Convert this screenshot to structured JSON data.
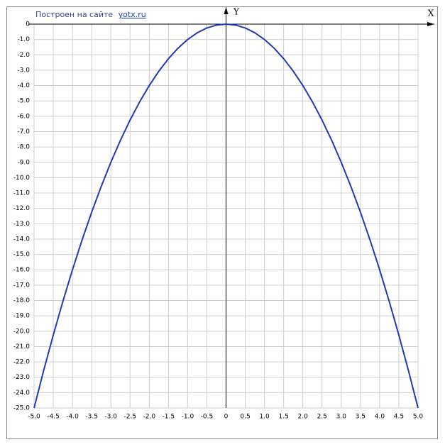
{
  "chart_data": {
    "type": "line",
    "credit": "Построен на сайте",
    "credit_link": "yotx.ru",
    "xlabel": "X",
    "ylabel": "Y",
    "x": [
      -5,
      -4.75,
      -4.5,
      -4.25,
      -4,
      -3.75,
      -3.5,
      -3.25,
      -3,
      -2.75,
      -2.5,
      -2.25,
      -2,
      -1.75,
      -1.5,
      -1.25,
      -1,
      -0.75,
      -0.5,
      -0.25,
      0,
      0.25,
      0.5,
      0.75,
      1,
      1.25,
      1.5,
      1.75,
      2,
      2.25,
      2.5,
      2.75,
      3,
      3.25,
      3.5,
      3.75,
      4,
      4.25,
      4.5,
      4.75,
      5
    ],
    "values": [
      -25,
      -22.5625,
      -20.25,
      -18.0625,
      -16,
      -14.0625,
      -12.25,
      -10.5625,
      -9,
      -7.5625,
      -6.25,
      -5.0625,
      -4,
      -3.0625,
      -2.25,
      -1.5625,
      -1,
      -0.5625,
      -0.25,
      -0.0625,
      0,
      -0.0625,
      -0.25,
      -0.5625,
      -1,
      -1.5625,
      -2.25,
      -3.0625,
      -4,
      -5.0625,
      -6.25,
      -7.5625,
      -9,
      -10.5625,
      -12.25,
      -14.0625,
      -16,
      -18.0625,
      -20.25,
      -22.5625,
      -25
    ],
    "color": "#2139b8",
    "xlim": [
      -5,
      5
    ],
    "ylim": [
      -25,
      0
    ],
    "xticks": [
      {
        "value": -5,
        "label": "-5.0"
      },
      -4.5,
      {
        "value": -4,
        "label": "-4.0"
      },
      -3.5,
      {
        "value": -3,
        "label": "-3.0"
      },
      -2.5,
      {
        "value": -2,
        "label": "-2.0"
      },
      -1.5,
      {
        "value": -1,
        "label": "-1.0"
      },
      -0.5,
      0,
      0.5,
      {
        "value": 1,
        "label": "1.0"
      },
      1.5,
      {
        "value": 2,
        "label": "2.0"
      },
      2.5,
      {
        "value": 3,
        "label": "3.0"
      },
      3.5,
      {
        "value": 4,
        "label": "4.0"
      },
      4.5,
      {
        "value": 5,
        "label": "5.0"
      }
    ],
    "yticks": [
      0,
      {
        "value": -1,
        "label": "-1.0"
      },
      {
        "value": -2,
        "label": "-2.0"
      },
      {
        "value": -3,
        "label": "-3.0"
      },
      {
        "value": -4,
        "label": "-4.0"
      },
      {
        "value": -5,
        "label": "-5.0"
      },
      {
        "value": -6,
        "label": "-6.0"
      },
      {
        "value": -7,
        "label": "-7.0"
      },
      {
        "value": -8,
        "label": "-8.0"
      },
      {
        "value": -9,
        "label": "-9.0"
      },
      {
        "value": -10,
        "label": "-10.0"
      },
      {
        "value": -11,
        "label": "-11.0"
      },
      {
        "value": -12,
        "label": "-12.0"
      },
      {
        "value": -13,
        "label": "-13.0"
      },
      {
        "value": -14,
        "label": "-14.0"
      },
      {
        "value": -15,
        "label": "-15.0"
      },
      {
        "value": -16,
        "label": "-16.0"
      },
      {
        "value": -17,
        "label": "-17.0"
      },
      {
        "value": -18,
        "label": "-18.0"
      },
      {
        "value": -19,
        "label": "-19.0"
      },
      {
        "value": -20,
        "label": "-20.0"
      },
      {
        "value": -21,
        "label": "-21.0"
      },
      {
        "value": -22,
        "label": "-22.0"
      },
      {
        "value": -23,
        "label": "-23.0"
      },
      {
        "value": -24,
        "label": "-24.0"
      },
      {
        "value": -25,
        "label": "-25.0"
      }
    ],
    "grid": true
  }
}
